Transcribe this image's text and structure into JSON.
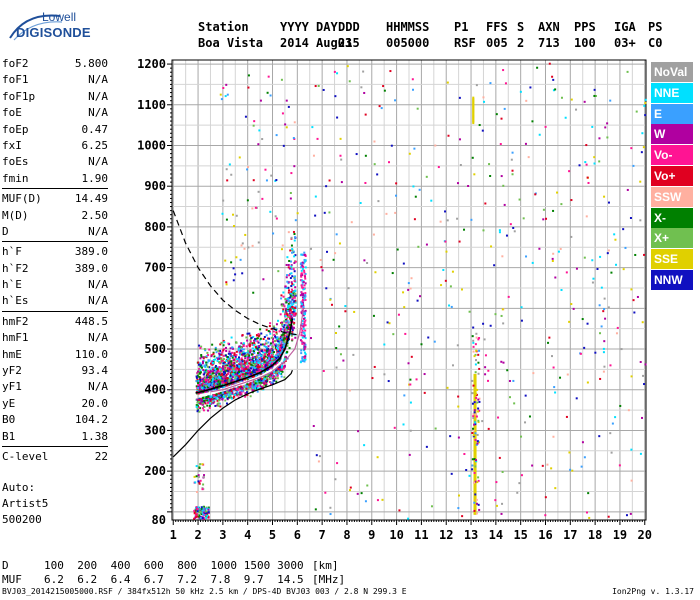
{
  "logo": {
    "line1": "Lowell",
    "line2": "DIGISONDE"
  },
  "header": {
    "labels": [
      "Station",
      "YYYY",
      "DAY",
      "DDD",
      "HHMMSS",
      "P1",
      "FFS",
      "S",
      "AXN",
      "PPS",
      "IGA",
      "PS"
    ],
    "values": [
      "Boa Vista",
      "2014",
      "Aug03",
      "215",
      "005000",
      "RSF",
      "005",
      "2",
      "713",
      "100",
      "03+",
      "C0"
    ]
  },
  "params": {
    "group1": [
      {
        "label": "foF2",
        "value": "5.800"
      },
      {
        "label": "foF1",
        "value": "N/A"
      },
      {
        "label": "foF1p",
        "value": "N/A"
      },
      {
        "label": "foE",
        "value": "N/A"
      },
      {
        "label": "foEp",
        "value": "0.47"
      },
      {
        "label": "fxI",
        "value": "6.25"
      },
      {
        "label": "foEs",
        "value": "N/A"
      },
      {
        "label": "fmin",
        "value": "1.90"
      }
    ],
    "group2": [
      {
        "label": "MUF(D)",
        "value": "14.49"
      },
      {
        "label": "M(D)",
        "value": "2.50"
      },
      {
        "label": "D",
        "value": "N/A"
      }
    ],
    "group3": [
      {
        "label": "h`F",
        "value": "389.0"
      },
      {
        "label": "h`F2",
        "value": "389.0"
      },
      {
        "label": "h`E",
        "value": "N/A"
      },
      {
        "label": "h`Es",
        "value": "N/A"
      }
    ],
    "group4": [
      {
        "label": "hmF2",
        "value": "448.5"
      },
      {
        "label": "hmF1",
        "value": "N/A"
      },
      {
        "label": "hmE",
        "value": "110.0"
      },
      {
        "label": "yF2",
        "value": "93.4"
      },
      {
        "label": "yF1",
        "value": "N/A"
      },
      {
        "label": "yE",
        "value": "20.0"
      },
      {
        "label": "B0",
        "value": "104.2"
      },
      {
        "label": "B1",
        "value": "1.38"
      }
    ],
    "group5": [
      {
        "label": "C-level",
        "value": "22"
      }
    ]
  },
  "auto": {
    "line1": "Auto:",
    "line2": "Artist5",
    "line3": "500200"
  },
  "dmuf": {
    "d_label": "D",
    "d_values": [
      "100",
      "200",
      "400",
      "600",
      "800",
      "1000",
      "1500",
      "3000"
    ],
    "d_unit": "[km]",
    "muf_label": "MUF",
    "muf_values": [
      "6.2",
      "6.2",
      "6.4",
      "6.7",
      "7.2",
      "7.8",
      "9.7",
      "14.5"
    ],
    "muf_unit": "[MHz]"
  },
  "footer": {
    "text": "BVJ03_2014215005000.RSF / 384fx512h 50 kHz 2.5 km / DPS-4D BVJ03 003 / 2.8 N 299.3 E",
    "version": "Ion2Png v. 1.3.17"
  },
  "legend": [
    {
      "label": "NoVal",
      "bg": "#a0a0a0",
      "fg": "#ffffff"
    },
    {
      "label": "NNE",
      "bg": "#00e0ff",
      "fg": "#ffffff"
    },
    {
      "label": "E",
      "bg": "#3aa0ff",
      "fg": "#ffffff"
    },
    {
      "label": "W",
      "bg": "#b000a0",
      "fg": "#ffffff"
    },
    {
      "label": "Vo-",
      "bg": "#ff1493",
      "fg": "#ffffff"
    },
    {
      "label": "Vo+",
      "bg": "#e00020",
      "fg": "#ffffff"
    },
    {
      "label": "SSW",
      "bg": "#ffb0a0",
      "fg": "#ffffff"
    },
    {
      "label": "X-",
      "bg": "#008000",
      "fg": "#ffffff"
    },
    {
      "label": "X+",
      "bg": "#70c050",
      "fg": "#ffffff"
    },
    {
      "label": "SSE",
      "bg": "#e0d000",
      "fg": "#ffffff"
    },
    {
      "label": "NNW",
      "bg": "#1010c0",
      "fg": "#ffffff"
    }
  ],
  "chart_data": {
    "type": "scatter",
    "x_ticks": [
      "1",
      "2",
      "3",
      "4",
      "5",
      "6",
      "7",
      "8",
      "9",
      "10",
      "11",
      "12",
      "13",
      "14",
      "15",
      "16",
      "17",
      "18",
      "19",
      "20"
    ],
    "y_ticks": [
      "80",
      "200",
      "300",
      "400",
      "500",
      "600",
      "700",
      "800",
      "900",
      "1000",
      "1100",
      "1200"
    ],
    "xlim": [
      0.95,
      20.05
    ],
    "ylim": [
      80,
      1210
    ],
    "grid": true,
    "legend_position": "right",
    "trace_model": {
      "virtual_height_o": [
        [
          1.9,
          392
        ],
        [
          2.2,
          396
        ],
        [
          2.6,
          403
        ],
        [
          3.0,
          410
        ],
        [
          3.5,
          420
        ],
        [
          4.0,
          430
        ],
        [
          4.5,
          442
        ],
        [
          5.0,
          460
        ],
        [
          5.3,
          478
        ],
        [
          5.5,
          500
        ],
        [
          5.7,
          540
        ],
        [
          5.8,
          575
        ]
      ],
      "true_height_profile": [
        [
          1.0,
          235
        ],
        [
          1.5,
          265
        ],
        [
          2.0,
          300
        ],
        [
          2.5,
          330
        ],
        [
          3.0,
          355
        ],
        [
          3.5,
          375
        ],
        [
          4.0,
          390
        ],
        [
          4.5,
          402
        ],
        [
          5.0,
          412
        ],
        [
          5.5,
          425
        ],
        [
          5.75,
          440
        ],
        [
          5.8,
          448
        ]
      ],
      "x_trace": [
        [
          2.5,
          395
        ],
        [
          3.0,
          400
        ],
        [
          3.5,
          410
        ],
        [
          4.0,
          420
        ],
        [
          4.5,
          430
        ],
        [
          5.0,
          445
        ],
        [
          5.5,
          470
        ],
        [
          5.9,
          500
        ],
        [
          6.1,
          540
        ],
        [
          6.25,
          600
        ]
      ],
      "muf_curve": [
        [
          1.0,
          840
        ],
        [
          1.5,
          760
        ],
        [
          2.0,
          700
        ],
        [
          2.5,
          655
        ],
        [
          3.0,
          620
        ],
        [
          3.5,
          595
        ],
        [
          4.0,
          575
        ],
        [
          4.5,
          560
        ],
        [
          5.0,
          550
        ],
        [
          5.5,
          540
        ],
        [
          6.0,
          535
        ]
      ]
    }
  }
}
